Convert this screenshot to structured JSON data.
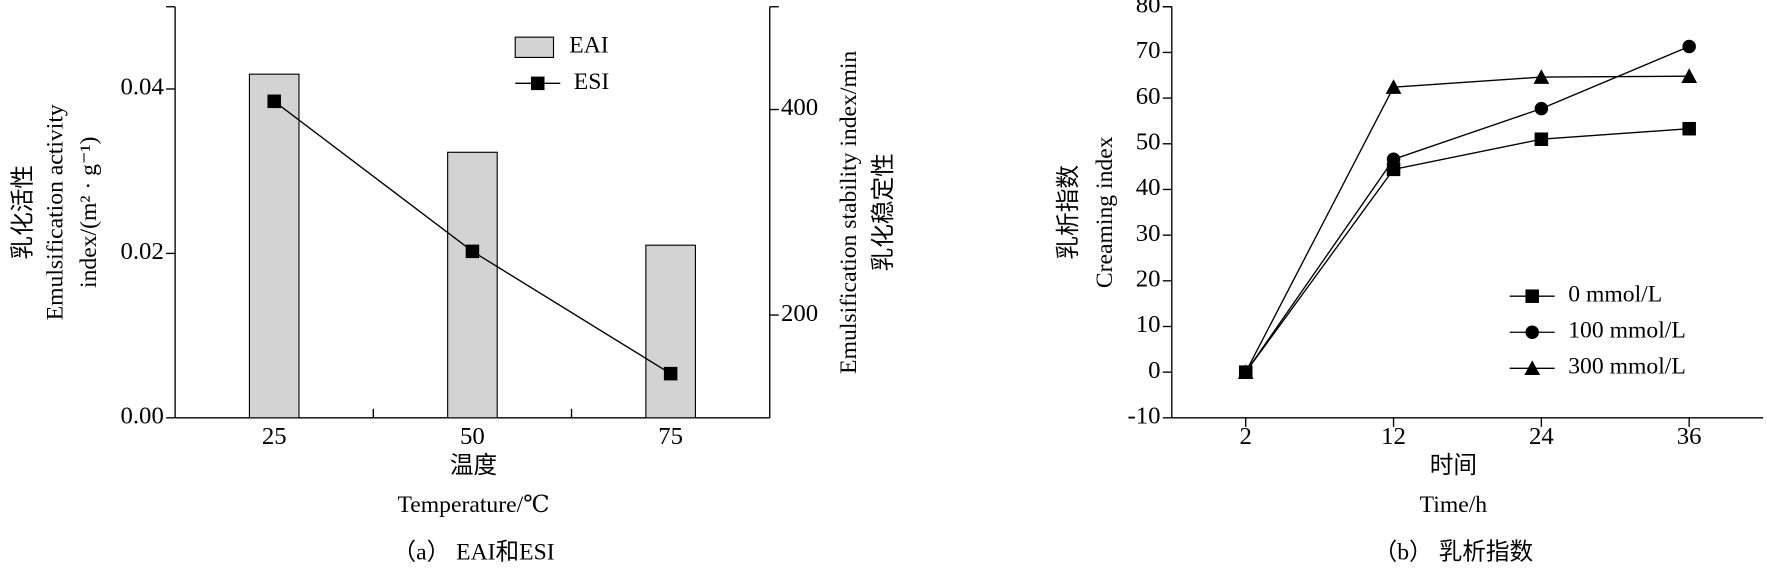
{
  "chart_data": [
    {
      "type": "bar",
      "ylabel": [
        "乳化活性",
        "Emulsification activity",
        "index/(m² · g⁻¹)"
      ],
      "y2label": [
        "Emulsification stability index/min",
        "乳化稳定性"
      ],
      "xlabel": [
        "温度",
        "Temperature/℃"
      ],
      "caption": "（a） EAI和ESI",
      "categories": [
        "25",
        "50",
        "75"
      ],
      "ylim": [
        0,
        0.05
      ],
      "yticks": [
        {
          "value": 0,
          "label": "0.00"
        },
        0.02,
        0.04
      ],
      "y2lim": [
        100,
        500
      ],
      "y2ticks": [
        200,
        400
      ],
      "legend": "upper right",
      "series": [
        {
          "name": "EAI",
          "type": "bar",
          "color": "#d3d3d3",
          "values": [
            0.0418,
            0.0323,
            0.021
          ]
        },
        {
          "name": "ESI",
          "type": "line",
          "axis": "y2",
          "marker": "square",
          "color": "#000000",
          "values": [
            408,
            262,
            143
          ]
        }
      ]
    },
    {
      "type": "line",
      "ylabel": [
        "乳析指数",
        "Creaming index"
      ],
      "xlabel": [
        "时间",
        "Time/h"
      ],
      "caption": "（b） 乳析指数",
      "categories": [
        "2",
        "12",
        "24",
        "36"
      ],
      "ylim": [
        -10,
        80
      ],
      "yticks": [
        -10,
        0,
        10,
        20,
        30,
        40,
        50,
        60,
        70,
        80
      ],
      "legend": "lower right",
      "series": [
        {
          "name": "0 mmol/L",
          "marker": "square",
          "color": "#000000",
          "values": [
            0,
            44.4,
            51,
            53.3
          ]
        },
        {
          "name": "100 mmol/L",
          "marker": "circle",
          "color": "#000000",
          "values": [
            0,
            46.6,
            57.7,
            71.3
          ]
        },
        {
          "name": "300 mmol/L",
          "marker": "triangle",
          "color": "#000000",
          "values": [
            0,
            62.4,
            64.6,
            64.8
          ]
        }
      ]
    }
  ]
}
